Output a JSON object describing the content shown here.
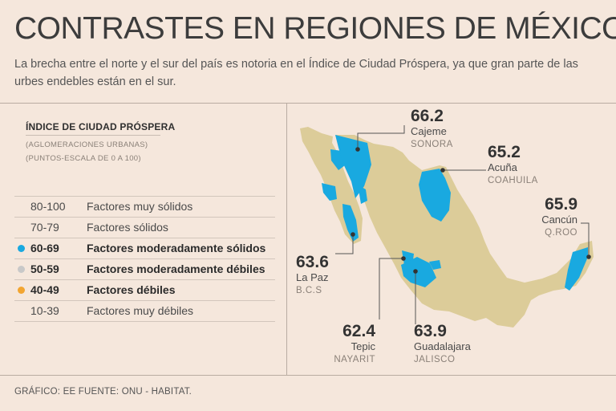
{
  "header": {
    "title": "CONTRASTES EN REGIONES DE MÉXICO",
    "subtitle": "La brecha entre el norte y el sur del país es notoria en el Índice de Ciudad Próspera, ya que gran parte de las urbes endebles están en el sur."
  },
  "index": {
    "title": "ÍNDICE DE CIUDAD PRÓSPERA",
    "sub1": "(AGLOMERACIONES URBANAS)",
    "sub2": "(PUNTOS-ESCALA DE 0 A 100)"
  },
  "legend": [
    {
      "range": "80-100",
      "label": "Factores muy sólidos",
      "color": "",
      "highlight": false
    },
    {
      "range": "70-79",
      "label": "Factores sólidos",
      "color": "",
      "highlight": false
    },
    {
      "range": "60-69",
      "label": "Factores moderadamente sólidos",
      "color": "#19a9e0",
      "highlight": true
    },
    {
      "range": "50-59",
      "label": "Factores moderadamente débiles",
      "color": "#c8c8c8",
      "highlight": true
    },
    {
      "range": "40-49",
      "label": "Factores débiles",
      "color": "#f2a531",
      "highlight": true
    },
    {
      "range": "10-39",
      "label": "Factores muy débiles",
      "color": "",
      "highlight": false
    }
  ],
  "callouts": {
    "cajeme": {
      "value": "66.2",
      "city": "Cajeme",
      "state": "SONORA"
    },
    "acuna": {
      "value": "65.2",
      "city": "Acuña",
      "state": "COAHUILA"
    },
    "cancun": {
      "value": "65.9",
      "city": "Cancún",
      "state": "Q.ROO"
    },
    "lapaz": {
      "value": "63.6",
      "city": "La Paz",
      "state": "B.C.S"
    },
    "tepic": {
      "value": "62.4",
      "city": "Tepic",
      "state": "NAYARIT"
    },
    "guadalajara": {
      "value": "63.9",
      "city": "Guadalajara",
      "state": "JALISCO"
    }
  },
  "colors": {
    "land": "#dccc99",
    "highlight_region": "#19a9e0",
    "background": "#f5e7dc"
  },
  "footer": "GRÁFICO: EE  FUENTE: ONU - HABITAT."
}
